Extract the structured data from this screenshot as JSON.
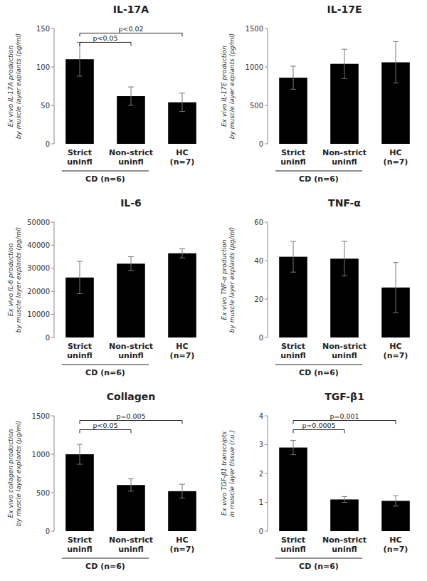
{
  "chart_data": [
    {
      "type": "bar",
      "title": "IL-17A",
      "y_label": "Ex vivo IL-17A production\nby muscle layer explants (pg/ml)",
      "categories": [
        "Strict\nuninfl",
        "Non-strict\nuninfl",
        "HC\n(n=7)"
      ],
      "values": [
        110,
        62,
        54
      ],
      "errors": [
        22,
        12,
        12
      ],
      "color": "#000000",
      "ylim": [
        0,
        150
      ],
      "yticks": [
        0,
        50,
        100,
        150
      ],
      "grid": false,
      "group_labels": [
        {
          "text": "CD (n=6)",
          "categories": [
            0,
            1
          ]
        }
      ],
      "brackets": [
        {
          "text": "p<0.05",
          "bars": [
            0,
            1
          ]
        },
        {
          "text": "p<0.02",
          "bars": [
            0,
            2
          ]
        }
      ]
    },
    {
      "type": "bar",
      "title": "IL-17E",
      "y_label": "Ex vivo IL-17E production\nby muscle layer explants (pg/ml)",
      "categories": [
        "Strict\nuninfl",
        "Non-strict\nuninfl",
        "HC\n(n=7)"
      ],
      "values": [
        860,
        1040,
        1060
      ],
      "errors": [
        150,
        190,
        270
      ],
      "color": "#000000",
      "ylim": [
        0,
        1500
      ],
      "yticks": [
        0,
        500,
        1000,
        1500
      ],
      "grid": false,
      "group_labels": [
        {
          "text": "CD (n=6)",
          "categories": [
            0,
            1
          ]
        }
      ],
      "brackets": []
    },
    {
      "type": "bar",
      "title": "IL-6",
      "y_label": "Ex vivo IL-6 production\nby muscle layer explants (pg/ml)",
      "categories": [
        "Strict\nuninfl",
        "Non-strict\nuninfl",
        "HC\n(n=7)"
      ],
      "values": [
        26000,
        32000,
        36500
      ],
      "errors": [
        7000,
        3000,
        2000
      ],
      "color": "#000000",
      "ylim": [
        0,
        50000
      ],
      "yticks": [
        0,
        10000,
        20000,
        30000,
        40000,
        50000
      ],
      "grid": false,
      "group_labels": [
        {
          "text": "CD (n=6)",
          "categories": [
            0,
            1
          ]
        }
      ],
      "brackets": []
    },
    {
      "type": "bar",
      "title": "TNF-α",
      "y_label": "Ex vivo TNF-α production\nby muscle layer explants (pg/ml)",
      "categories": [
        "Strict\nuninfl",
        "Non-strict\nuninfl",
        "HC\n(n=7)"
      ],
      "values": [
        42,
        41,
        26
      ],
      "errors": [
        8,
        9,
        13
      ],
      "color": "#000000",
      "ylim": [
        0,
        60
      ],
      "yticks": [
        0,
        20,
        40,
        60
      ],
      "grid": false,
      "group_labels": [
        {
          "text": "CD (n=6)",
          "categories": [
            0,
            1
          ]
        }
      ],
      "brackets": []
    },
    {
      "type": "bar",
      "title": "Collagen",
      "y_label": "Ex vivo collagen production\nby muscle layer explants (μg/ml)",
      "categories": [
        "Strict\nuninfl",
        "Non-strict\nuninfl",
        "HC\n(n=7)"
      ],
      "values": [
        1000,
        600,
        520
      ],
      "errors": [
        130,
        80,
        90
      ],
      "color": "#000000",
      "ylim": [
        0,
        1500
      ],
      "yticks": [
        0,
        500,
        1000,
        1500
      ],
      "grid": false,
      "group_labels": [
        {
          "text": "CD (n=6)",
          "categories": [
            0,
            1
          ]
        }
      ],
      "brackets": [
        {
          "text": "p<0.05",
          "bars": [
            0,
            1
          ]
        },
        {
          "text": "p=0.005",
          "bars": [
            0,
            2
          ]
        }
      ]
    },
    {
      "type": "bar",
      "title": "TGF-β1",
      "y_label": "Ex vivo TGF-β1 transcripts\nin muscle layer tissue (r.u.)",
      "categories": [
        "Strict\nuninfl",
        "Non-strict\nuninfl",
        "HC\n(n=7)"
      ],
      "values": [
        2.9,
        1.1,
        1.05
      ],
      "errors": [
        0.25,
        0.1,
        0.18
      ],
      "color": "#000000",
      "ylim": [
        0,
        4
      ],
      "yticks": [
        0,
        1,
        2,
        3,
        4
      ],
      "grid": false,
      "group_labels": [
        {
          "text": "CD (n=6)",
          "categories": [
            0,
            1
          ]
        }
      ],
      "brackets": [
        {
          "text": "p=0.0005",
          "bars": [
            0,
            1
          ]
        },
        {
          "text": "p=0.001",
          "bars": [
            0,
            2
          ]
        }
      ]
    }
  ]
}
